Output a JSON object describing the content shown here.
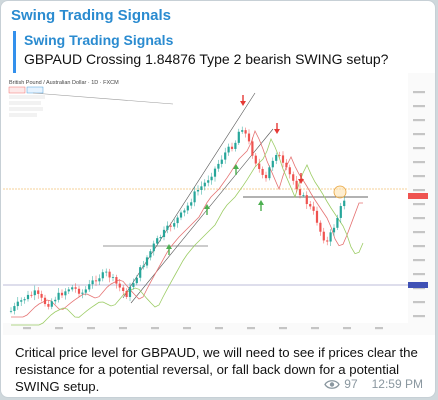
{
  "channel": {
    "title": "Swing Trading Signals"
  },
  "reply": {
    "author": "Swing Trading Signals",
    "text": "GBPAUD Crossing 1.84876 Type 2 bearish SWING setup?"
  },
  "chart_header": {
    "symbol_line": "British Pound / Australian Dollar · 1D · FXCM"
  },
  "message": {
    "text": "Critical price level for GBPAUD, we will need to see if prices clear the resistance for a potential reversal, or fall back down for a potential SWING setup.",
    "views": "97",
    "time": "12:59 PM"
  },
  "colors": {
    "accent": "#2a8bd0",
    "bull": "#26a69a",
    "bear": "#ef5350",
    "signal_up": "#4caf50",
    "signal_down": "#e53935"
  },
  "icons": [
    "eye-icon",
    "arrow-up-icon",
    "arrow-down-icon"
  ]
}
